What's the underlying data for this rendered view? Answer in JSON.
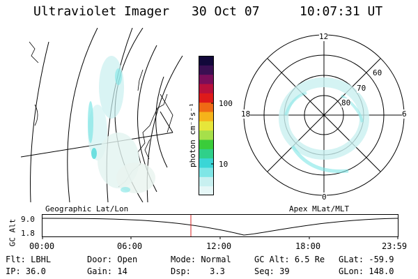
{
  "header": {
    "instrument": "Ultraviolet Imager",
    "date": "30 Oct 07",
    "time": "10:07:31 UT"
  },
  "colorbar": {
    "unit_label": "photon cm⁻²s⁻¹",
    "tick_labels": [
      "100",
      "10"
    ],
    "scale": "log",
    "colors": [
      "#e6f7f7",
      "#c8f0f0",
      "#7fe6e6",
      "#3ad6d6",
      "#2fd08a",
      "#3acc3a",
      "#a6e04a",
      "#e6e63a",
      "#f5b31a",
      "#ef6a14",
      "#de1a1a",
      "#b8103c",
      "#7a0e5a",
      "#3a0f52",
      "#12083a"
    ]
  },
  "geo_panel": {
    "label": "Geographic Lat/Lon"
  },
  "polar_panel": {
    "label": "Apex MLat/MLT",
    "lat_labels": [
      "60",
      "70",
      "80"
    ],
    "mlt_labels": {
      "top": "12",
      "bottom": "0",
      "left": "18",
      "right": "6"
    }
  },
  "timeline": {
    "axis_label": "GC Alt",
    "y_ticks": [
      "9.0",
      "1.8"
    ],
    "x_ticks": [
      "00:00",
      "06:00",
      "12:00",
      "18:00",
      "23:59"
    ],
    "current_time_marker_color": "#d62020"
  },
  "status": {
    "row1": [
      {
        "key": "Flt:",
        "value": "LBHL"
      },
      {
        "key": "Door:",
        "value": "Open"
      },
      {
        "key": "Mode:",
        "value": "Normal"
      },
      {
        "key": "GC Alt:",
        "value": "6.5 Re"
      },
      {
        "key": "GLat:",
        "value": "-59.9"
      }
    ],
    "row2": [
      {
        "key": "IP:",
        "value": "36.0"
      },
      {
        "key": "Gain:",
        "value": "14"
      },
      {
        "key": "Dsp:",
        "value": "3.3"
      },
      {
        "key": "Seq:",
        "value": "39"
      },
      {
        "key": "GLon:",
        "value": "148.0"
      }
    ]
  }
}
